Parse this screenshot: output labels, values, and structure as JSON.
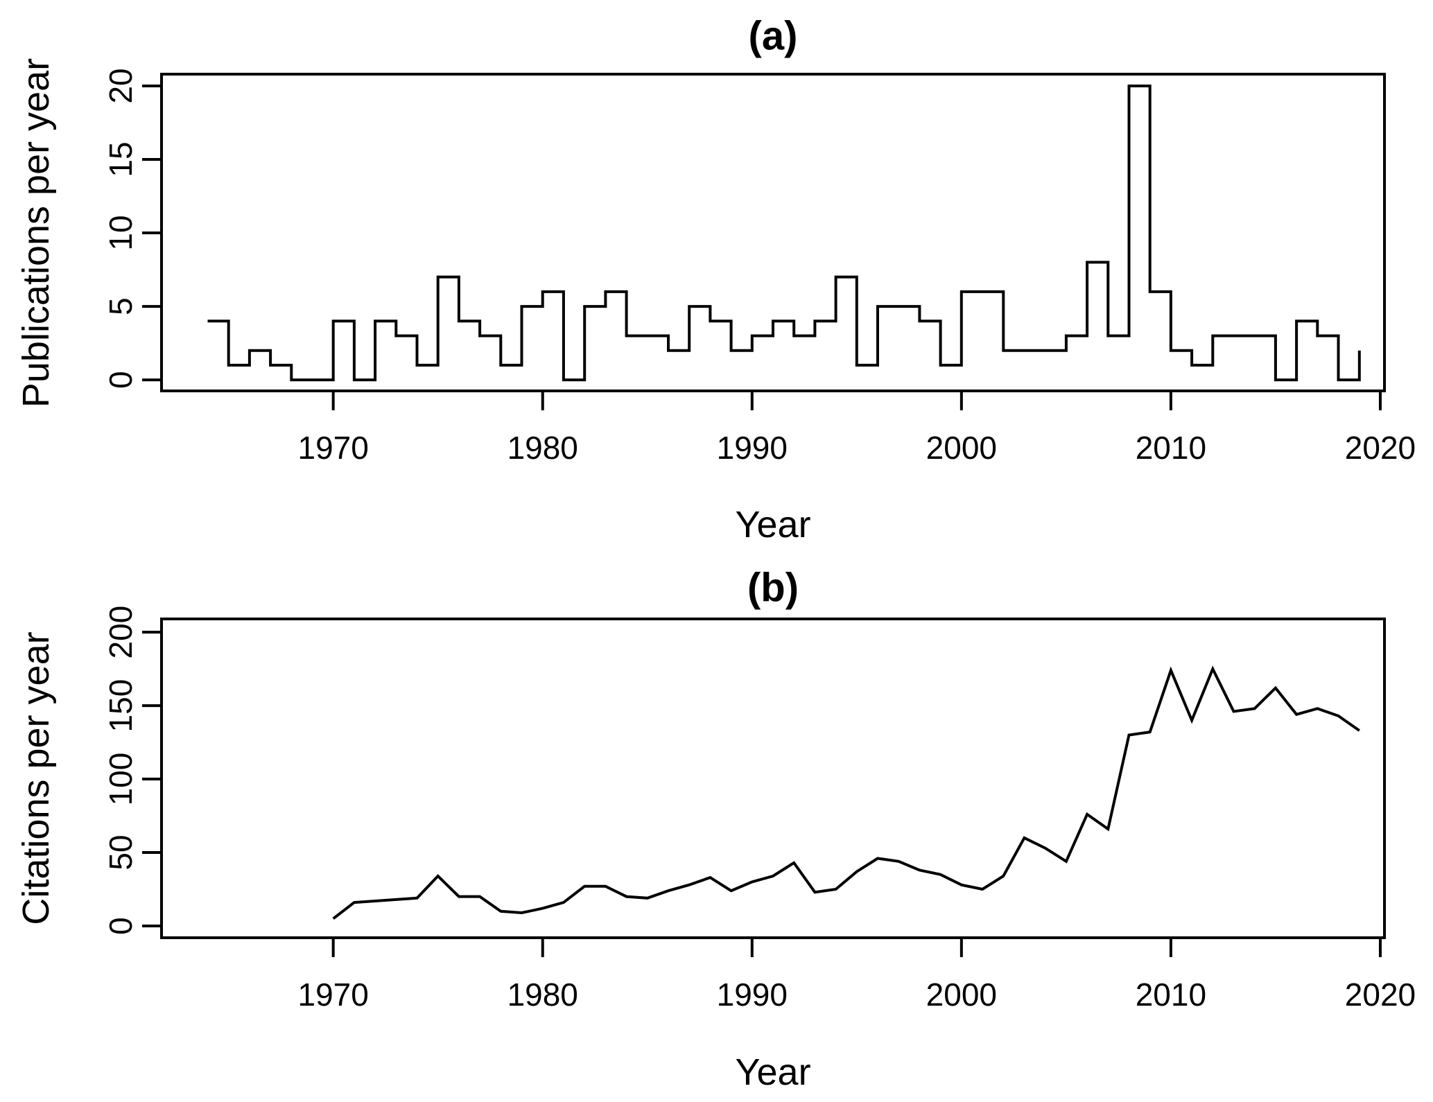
{
  "figure": {
    "background": "#ffffff",
    "line_color": "#000000"
  },
  "chart_data": [
    {
      "type": "line",
      "subtype": "step",
      "title": "(a)",
      "xlabel": "Year",
      "ylabel": "Publications per year",
      "x_ticks": [
        1970,
        1980,
        1990,
        2000,
        2010,
        2020
      ],
      "y_ticks": [
        0,
        5,
        10,
        15,
        20
      ],
      "xlim": [
        1961.8,
        2020.2
      ],
      "ylim": [
        -0.75,
        20.8
      ],
      "grid": false,
      "legend": "none",
      "x": [
        1964,
        1965,
        1966,
        1967,
        1968,
        1969,
        1970,
        1971,
        1972,
        1973,
        1974,
        1975,
        1976,
        1977,
        1978,
        1979,
        1980,
        1981,
        1982,
        1983,
        1984,
        1985,
        1986,
        1987,
        1988,
        1989,
        1990,
        1991,
        1992,
        1993,
        1994,
        1995,
        1996,
        1997,
        1998,
        1999,
        2000,
        2001,
        2002,
        2003,
        2004,
        2005,
        2006,
        2007,
        2008,
        2009,
        2010,
        2011,
        2012,
        2013,
        2014,
        2015,
        2016,
        2017,
        2018,
        2019
      ],
      "values": [
        4,
        1,
        2,
        1,
        0,
        0,
        4,
        0,
        4,
        3,
        1,
        7,
        4,
        3,
        1,
        5,
        6,
        0,
        5,
        6,
        3,
        3,
        2,
        5,
        4,
        2,
        3,
        4,
        3,
        4,
        7,
        1,
        5,
        5,
        4,
        1,
        6,
        6,
        2,
        2,
        2,
        3,
        8,
        3,
        20,
        6,
        2,
        1,
        3,
        3,
        3,
        0,
        4,
        3,
        0,
        2
      ]
    },
    {
      "type": "line",
      "subtype": "plain",
      "title": "(b)",
      "xlabel": "Year",
      "ylabel": "Citations per year",
      "x_ticks": [
        1970,
        1980,
        1990,
        2000,
        2010,
        2020
      ],
      "y_ticks": [
        0,
        50,
        100,
        150,
        200
      ],
      "xlim": [
        1961.8,
        2020.2
      ],
      "ylim": [
        -8,
        209
      ],
      "grid": false,
      "legend": "none",
      "x": [
        1970,
        1971,
        1972,
        1973,
        1974,
        1975,
        1976,
        1977,
        1978,
        1979,
        1980,
        1981,
        1982,
        1983,
        1984,
        1985,
        1986,
        1987,
        1988,
        1989,
        1990,
        1991,
        1992,
        1993,
        1994,
        1995,
        1996,
        1997,
        1998,
        1999,
        2000,
        2001,
        2002,
        2003,
        2004,
        2005,
        2006,
        2007,
        2008,
        2009,
        2010,
        2011,
        2012,
        2013,
        2014,
        2015,
        2016,
        2017,
        2018,
        2019
      ],
      "values": [
        5,
        16,
        17,
        18,
        19,
        34,
        20,
        20,
        10,
        9,
        12,
        16,
        27,
        27,
        20,
        19,
        24,
        28,
        33,
        24,
        30,
        34,
        43,
        23,
        25,
        37,
        46,
        44,
        38,
        35,
        28,
        25,
        34,
        60,
        53,
        44,
        76,
        66,
        130,
        132,
        174,
        140,
        175,
        146,
        148,
        162,
        144,
        148,
        143,
        133
      ]
    }
  ]
}
